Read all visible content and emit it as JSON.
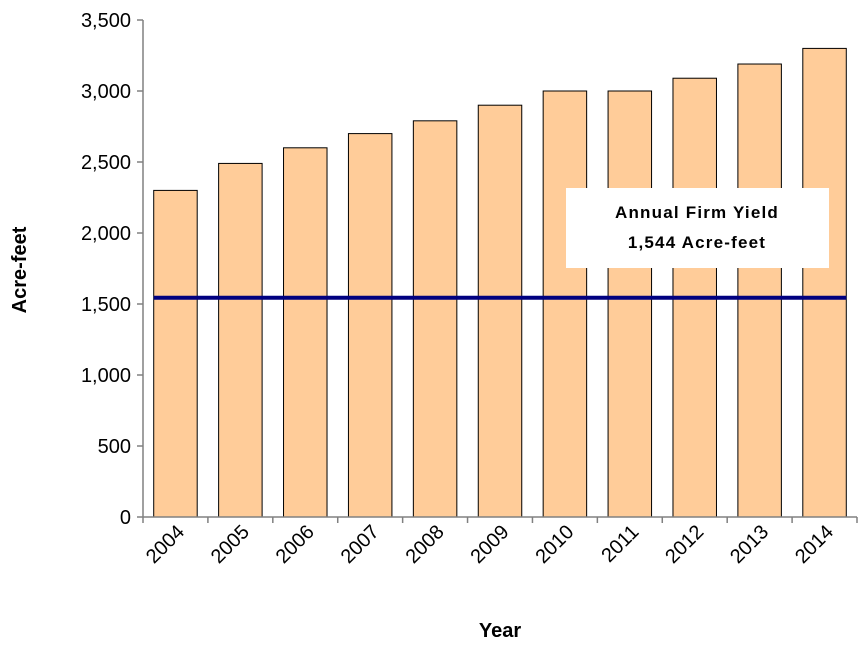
{
  "chart_data": {
    "type": "bar",
    "title": "",
    "xlabel": "Year",
    "ylabel": "Acre-feet",
    "categories": [
      "2004",
      "2005",
      "2006",
      "2007",
      "2008",
      "2009",
      "2010",
      "2011",
      "2012",
      "2013",
      "2014"
    ],
    "values": [
      2300,
      2490,
      2600,
      2700,
      2790,
      2900,
      3000,
      3000,
      3090,
      3190,
      3300
    ],
    "ylim": [
      0,
      3500
    ],
    "yticks": [
      0,
      500,
      1000,
      1500,
      2000,
      2500,
      3000,
      3500
    ],
    "ytick_labels": [
      "0",
      "500",
      "1,000",
      "1,500",
      "2,000",
      "2,500",
      "3,000",
      "3,500"
    ],
    "grid": false,
    "legend": "none",
    "bar_color": "#FFCC99",
    "bar_edge_color": "#000000",
    "reference_line": {
      "value": 1544,
      "color": "#000080",
      "annotation_lines": [
        "Annual Firm Yield",
        "1,544 Acre-feet"
      ]
    }
  }
}
